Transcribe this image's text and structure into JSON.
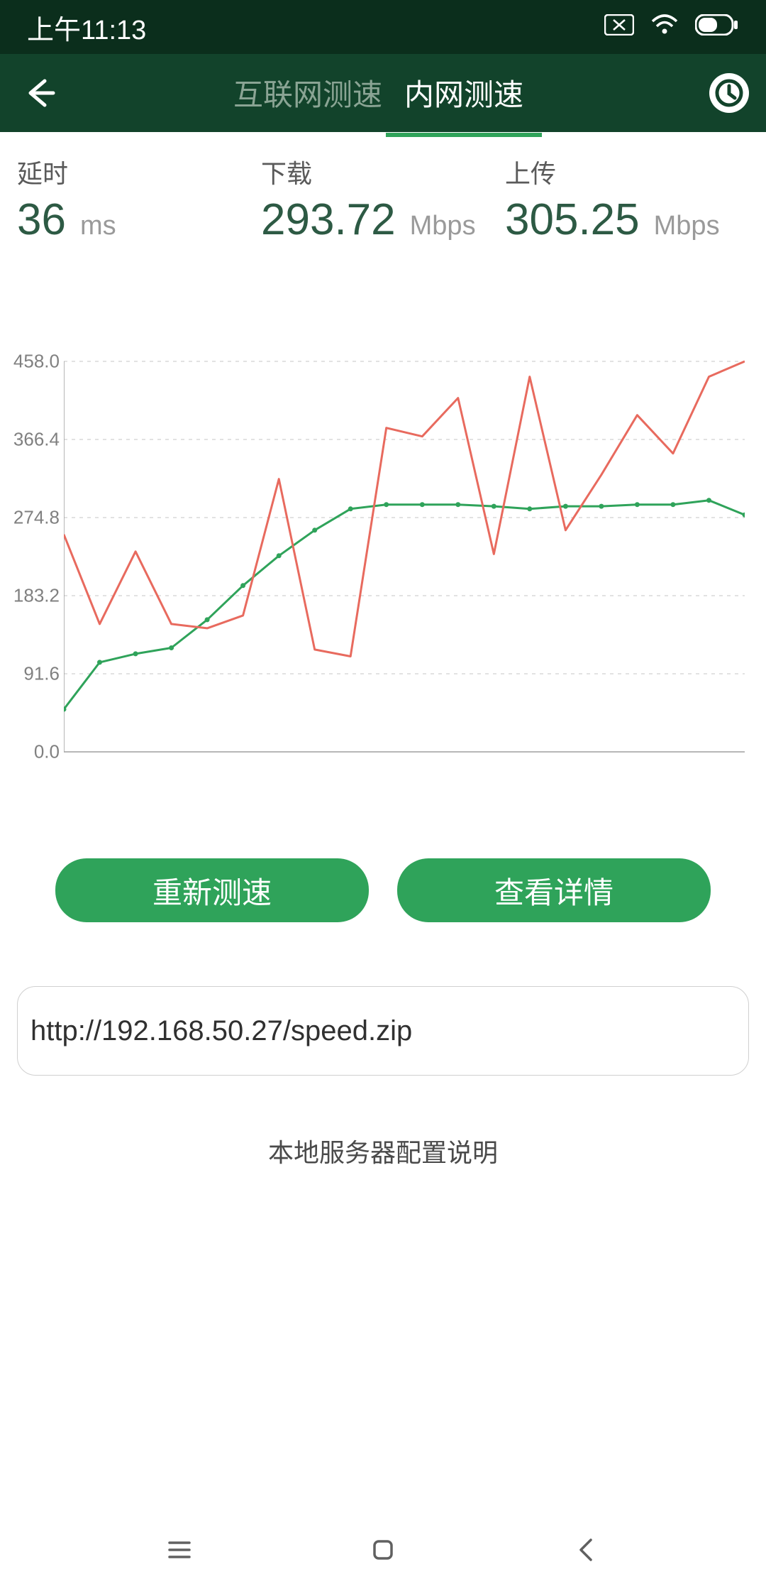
{
  "status": {
    "time": "上午11:13"
  },
  "header": {
    "tab1": "互联网测速",
    "tab2": "内网测速",
    "active_tab": 2
  },
  "stats": {
    "latency": {
      "label": "延时",
      "value": "36",
      "unit": "ms"
    },
    "download": {
      "label": "下载",
      "value": "293.72",
      "unit": "Mbps"
    },
    "upload": {
      "label": "上传",
      "value": "305.25",
      "unit": "Mbps"
    }
  },
  "chart": {
    "y_ticks": [
      "458.0",
      "366.4",
      "274.8",
      "183.2",
      "91.6",
      "0.0"
    ],
    "y_max": 458,
    "grid_color": "#c4c4c4",
    "axis_color": "#9f9f9f",
    "series": [
      {
        "name": "download",
        "color": "#2fa35a",
        "marker": true,
        "values": [
          50,
          105,
          115,
          122,
          155,
          195,
          230,
          260,
          285,
          290,
          290,
          290,
          288,
          285,
          288,
          288,
          290,
          290,
          295,
          278
        ]
      },
      {
        "name": "upload",
        "color": "#e86a5e",
        "marker": false,
        "values": [
          255,
          150,
          235,
          150,
          145,
          160,
          320,
          120,
          112,
          380,
          370,
          415,
          232,
          440,
          260,
          325,
          395,
          350,
          440,
          458
        ]
      }
    ]
  },
  "buttons": {
    "retest": "重新测速",
    "detail": "查看详情"
  },
  "url": {
    "value": "http://192.168.50.27/speed.zip"
  },
  "config_link": "本地服务器配置说明",
  "colors": {
    "header_bg": "#12432b",
    "status_bg": "#0b2e1c",
    "accent": "#2fa35a",
    "stat_value": "#2d5a44"
  }
}
